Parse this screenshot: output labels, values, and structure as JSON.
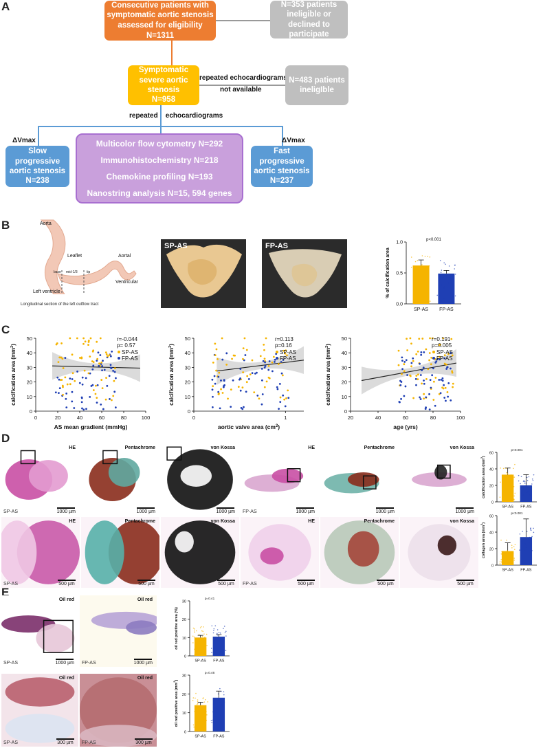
{
  "panels": {
    "a": "A",
    "b": "B",
    "c": "C",
    "d": "D",
    "e": "E"
  },
  "flow": {
    "consecutive": {
      "lines": [
        "Consecutive patients with",
        "symptomatic aortic stenosis",
        "assessed for eligibility",
        "",
        "N=1311"
      ]
    },
    "ineligible1": {
      "lines": [
        "N=353 patients",
        "ineligible or",
        "declined to",
        "participate"
      ]
    },
    "severe": {
      "lines": [
        "Symptomatic",
        "severe aortic",
        "stenosis",
        "N=958"
      ]
    },
    "repeated_na": {
      "line1": "repeated echocardiograms",
      "line2": "not available"
    },
    "ineligible2": {
      "lines": [
        "N=483 patients",
        "ineligIble"
      ]
    },
    "repeated_echo": "repeated    echocardiograms",
    "dvmax_left": "ΔVmax",
    "dvmax_right": "ΔVmax",
    "slow": {
      "lines": [
        "Slow",
        "progressive",
        "aortic stenosis",
        "N=238"
      ]
    },
    "fast": {
      "lines": [
        "Fast progressive",
        "aortic stenosis",
        "N=237"
      ]
    },
    "methods": {
      "lines": [
        "Multicolor flow cytometry N=292",
        "Immunohistochemistry N=218",
        "Chemokine profiling N=193",
        "Nanostring analysis N=15, 594 genes"
      ]
    }
  },
  "panel_b": {
    "diagram": {
      "aorta": "Aorta",
      "leaflet": "Leaflet",
      "aortal": "Aortal",
      "base": "base",
      "mid": "mid-1/3",
      "tip": "tip",
      "ventricular": "Ventricular",
      "left_ventricle": "Left ventricle",
      "caption": "Longitudinal section of the left outflow tract"
    },
    "photo_sp": "SP-AS",
    "photo_fp": "FP-AS"
  },
  "panel_c_labels": {
    "ylabel": "calcification area (mm",
    "ylabel_sup": "2",
    "ylabel_end": ")"
  },
  "panel_d": {
    "top_row": [
      {
        "title": "HE",
        "tag": "SP-AS",
        "scale": "1000 µm"
      },
      {
        "title": "Pentachrome",
        "tag": "",
        "scale": "1000 µm"
      },
      {
        "title": "von Kossa",
        "tag": "",
        "scale": "1000 µm"
      },
      {
        "title": "HE",
        "tag": "FP-AS",
        "scale": "1000 µm"
      },
      {
        "title": "Pentachrome",
        "tag": "",
        "scale": "1000 µm"
      },
      {
        "title": "von Kossa",
        "tag": "",
        "scale": "1000 µm"
      }
    ],
    "bottom_row": [
      {
        "title": "HE",
        "tag": "SP-AS",
        "scale": "500 µm"
      },
      {
        "title": "Pentachrome",
        "tag": "",
        "scale": "500 µm"
      },
      {
        "title": "von Kossa",
        "tag": "",
        "scale": "500 µm"
      },
      {
        "title": "HE",
        "tag": "FP-AS",
        "scale": "500 µm"
      },
      {
        "title": "Pentachrome",
        "tag": "",
        "scale": "500 µm"
      },
      {
        "title": "von Kossa",
        "tag": "",
        "scale": "500 µm"
      }
    ]
  },
  "panel_e": {
    "tiles": [
      {
        "title": "Oil red",
        "tag": "SP-AS",
        "scale": "1000 µm"
      },
      {
        "title": "Oil red",
        "tag": "FP-AS",
        "scale": "1000 µm"
      },
      {
        "title": "Oil red",
        "tag": "SP-AS",
        "scale": "300 µm"
      },
      {
        "title": "Oil red",
        "tag": "FP-AS",
        "scale": "300 µm"
      }
    ]
  },
  "colors": {
    "sp": "#f5b400",
    "fp": "#1f3fb4",
    "orange_box": "#ed7d31",
    "yellow_box": "#ffc000",
    "grey_box": "#bfbfbf",
    "blue_box": "#5b9bd5",
    "purple_box": "#c9a0dc"
  },
  "chart_data": [
    {
      "id": "b_bar",
      "type": "bar",
      "categories": [
        "SP-AS",
        "FP-AS"
      ],
      "values": [
        0.62,
        0.49
      ],
      "errors": [
        0.09,
        0.05
      ],
      "ylabel": "% of calcification area",
      "ylim": [
        0,
        1.0
      ],
      "yticks": [
        "0.0",
        "0.5",
        "1.0"
      ],
      "annotation": "p<0.001"
    },
    {
      "id": "c1",
      "type": "scatter",
      "xlabel": "AS mean gradient (mmHg)",
      "xlim": [
        0,
        100
      ],
      "ylim": [
        0,
        50
      ],
      "xticks": [
        0,
        20,
        40,
        60,
        80,
        100
      ],
      "yticks": [
        0,
        10,
        20,
        30,
        40,
        50
      ],
      "stats": [
        "r=-0.044",
        "p= 0.57"
      ],
      "legend": [
        "SP-AS",
        "FP-AS"
      ],
      "fit": {
        "x": [
          15,
          95
        ],
        "y": [
          31,
          29.5
        ]
      }
    },
    {
      "id": "c2",
      "type": "scatter",
      "xlabel": "aortic valve area (cm",
      "xlabel_sup": "2",
      "xlim": [
        0,
        1.2
      ],
      "ylim": [
        0,
        50
      ],
      "xticks": [
        0,
        1
      ],
      "yticks": [
        0,
        10,
        20,
        30,
        40,
        50
      ],
      "stats": [
        "r=0.113",
        "p=0.16"
      ],
      "legend": [
        "SP-AS",
        "FP-AS"
      ],
      "fit": {
        "x": [
          0.25,
          1.2
        ],
        "y": [
          27.5,
          35
        ]
      }
    },
    {
      "id": "c3",
      "type": "scatter",
      "xlabel": "age (yrs)",
      "xlim": [
        20,
        100
      ],
      "ylim": [
        0,
        50
      ],
      "xticks": [
        20,
        40,
        60,
        80,
        100
      ],
      "yticks": [
        0,
        10,
        20,
        30,
        40,
        50
      ],
      "stats": [
        "r=0.191",
        "p=0.005"
      ],
      "legend": [
        "SP-AS",
        "FP-AS"
      ],
      "fit": {
        "x": [
          28,
          97
        ],
        "y": [
          21,
          33
        ]
      }
    },
    {
      "id": "d_calc",
      "type": "bar",
      "categories": [
        "SP-AS",
        "FP-AS"
      ],
      "values": [
        33,
        20
      ],
      "errors": [
        8,
        13
      ],
      "ylabel": "calcification area (mm",
      "ylabel_sup": "2",
      "ylim": [
        0,
        60
      ],
      "yticks": [
        "0",
        "20",
        "40",
        "60"
      ],
      "annotation": "p<0.001"
    },
    {
      "id": "d_coll",
      "type": "bar",
      "categories": [
        "SP-AS",
        "FP-AS"
      ],
      "values": [
        17,
        34
      ],
      "errors": [
        10,
        22
      ],
      "ylabel": "collagen area (mm",
      "ylabel_sup": "2",
      "ylim": [
        0,
        60
      ],
      "yticks": [
        "0",
        "20",
        "40",
        "60"
      ],
      "annotation": "p<0.001"
    },
    {
      "id": "e_pct",
      "type": "bar",
      "categories": [
        "SP-AS",
        "FP-AS"
      ],
      "values": [
        10,
        10.5
      ],
      "errors": [
        1.2,
        1.1
      ],
      "ylabel": "oil red positive area (%)",
      "ylim": [
        0,
        30
      ],
      "yticks": [
        "0",
        "10",
        "20",
        "30"
      ],
      "annotation": "p=0.41"
    },
    {
      "id": "e_area",
      "type": "bar",
      "categories": [
        "SP-AS",
        "FP-AS"
      ],
      "values": [
        14,
        18
      ],
      "errors": [
        1.5,
        3.5
      ],
      "ylabel": "oil red positive area (mm",
      "ylabel_sup": "2",
      "ylim": [
        0,
        30
      ],
      "yticks": [
        "0",
        "10",
        "20",
        "30"
      ],
      "annotation": "p=0.46"
    }
  ]
}
